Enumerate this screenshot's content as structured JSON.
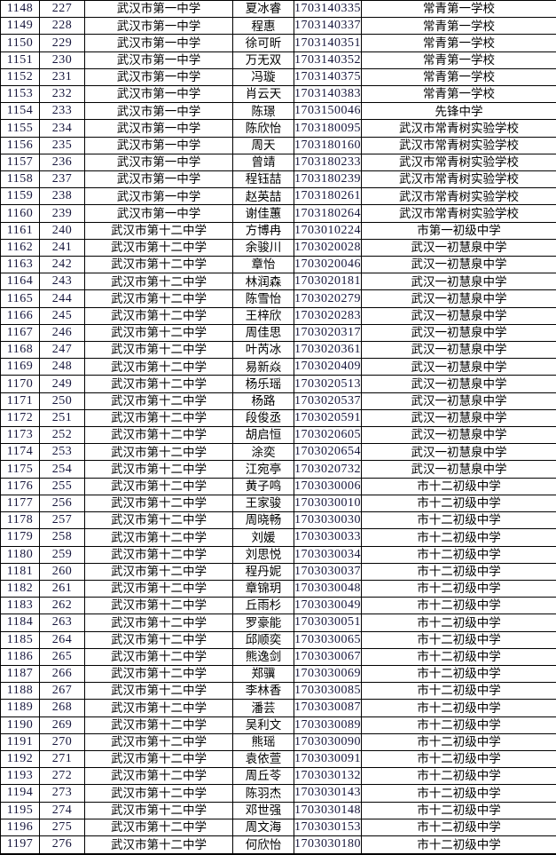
{
  "table": {
    "columns": [
      {
        "name": "cell-serial-number"
      },
      {
        "name": "cell-sequence-number"
      },
      {
        "name": "cell-school-name"
      },
      {
        "name": "cell-student-name"
      },
      {
        "name": "cell-exam-id"
      },
      {
        "name": "cell-destination-school"
      }
    ],
    "rows": [
      [
        "1148",
        "227",
        "武汉市第一中学",
        "夏冰睿",
        "1703140335",
        "常青第一学校"
      ],
      [
        "1149",
        "228",
        "武汉市第一中学",
        "程惠",
        "1703140337",
        "常青第一学校"
      ],
      [
        "1150",
        "229",
        "武汉市第一中学",
        "徐可昕",
        "1703140351",
        "常青第一学校"
      ],
      [
        "1151",
        "230",
        "武汉市第一中学",
        "万无双",
        "1703140352",
        "常青第一学校"
      ],
      [
        "1152",
        "231",
        "武汉市第一中学",
        "冯璇",
        "1703140375",
        "常青第一学校"
      ],
      [
        "1153",
        "232",
        "武汉市第一中学",
        "肖云天",
        "1703140383",
        "常青第一学校"
      ],
      [
        "1154",
        "233",
        "武汉市第一中学",
        "陈璟",
        "1703150046",
        "先锋中学"
      ],
      [
        "1155",
        "234",
        "武汉市第一中学",
        "陈欣怡",
        "1703180095",
        "武汉市常青树实验学校"
      ],
      [
        "1156",
        "235",
        "武汉市第一中学",
        "周天",
        "1703180160",
        "武汉市常青树实验学校"
      ],
      [
        "1157",
        "236",
        "武汉市第一中学",
        "曾靖",
        "1703180233",
        "武汉市常青树实验学校"
      ],
      [
        "1158",
        "237",
        "武汉市第一中学",
        "程钰喆",
        "1703180239",
        "武汉市常青树实验学校"
      ],
      [
        "1159",
        "238",
        "武汉市第一中学",
        "赵英喆",
        "1703180261",
        "武汉市常青树实验学校"
      ],
      [
        "1160",
        "239",
        "武汉市第一中学",
        "谢佳蕙",
        "1703180264",
        "武汉市常青树实验学校"
      ],
      [
        "1161",
        "240",
        "武汉市第十二中学",
        "方博冉",
        "1703010224",
        "市第一初级中学"
      ],
      [
        "1162",
        "241",
        "武汉市第十二中学",
        "余骏川",
        "1703020028",
        "武汉一初慧泉中学"
      ],
      [
        "1163",
        "242",
        "武汉市第十二中学",
        "章怡",
        "1703020046",
        "武汉一初慧泉中学"
      ],
      [
        "1164",
        "243",
        "武汉市第十二中学",
        "林润森",
        "1703020181",
        "武汉一初慧泉中学"
      ],
      [
        "1165",
        "244",
        "武汉市第十二中学",
        "陈雪怡",
        "1703020279",
        "武汉一初慧泉中学"
      ],
      [
        "1166",
        "245",
        "武汉市第十二中学",
        "王梓欣",
        "1703020283",
        "武汉一初慧泉中学"
      ],
      [
        "1167",
        "246",
        "武汉市第十二中学",
        "周佳思",
        "1703020317",
        "武汉一初慧泉中学"
      ],
      [
        "1168",
        "247",
        "武汉市第十二中学",
        "叶芮冰",
        "1703020361",
        "武汉一初慧泉中学"
      ],
      [
        "1169",
        "248",
        "武汉市第十二中学",
        "易新焱",
        "1703020409",
        "武汉一初慧泉中学"
      ],
      [
        "1170",
        "249",
        "武汉市第十二中学",
        "杨乐瑶",
        "1703020513",
        "武汉一初慧泉中学"
      ],
      [
        "1171",
        "250",
        "武汉市第十二中学",
        "杨路",
        "1703020537",
        "武汉一初慧泉中学"
      ],
      [
        "1172",
        "251",
        "武汉市第十二中学",
        "段俊丞",
        "1703020591",
        "武汉一初慧泉中学"
      ],
      [
        "1173",
        "252",
        "武汉市第十二中学",
        "胡启恒",
        "1703020605",
        "武汉一初慧泉中学"
      ],
      [
        "1174",
        "253",
        "武汉市第十二中学",
        "涂奕",
        "1703020654",
        "武汉一初慧泉中学"
      ],
      [
        "1175",
        "254",
        "武汉市第十二中学",
        "江宛亭",
        "1703020732",
        "武汉一初慧泉中学"
      ],
      [
        "1176",
        "255",
        "武汉市第十二中学",
        "黄子鸣",
        "1703030006",
        "市十二初级中学"
      ],
      [
        "1177",
        "256",
        "武汉市第十二中学",
        "王家骏",
        "1703030010",
        "市十二初级中学"
      ],
      [
        "1178",
        "257",
        "武汉市第十二中学",
        "周晓畅",
        "1703030030",
        "市十二初级中学"
      ],
      [
        "1179",
        "258",
        "武汉市第十二中学",
        "刘媛",
        "1703030033",
        "市十二初级中学"
      ],
      [
        "1180",
        "259",
        "武汉市第十二中学",
        "刘思悦",
        "1703030034",
        "市十二初级中学"
      ],
      [
        "1181",
        "260",
        "武汉市第十二中学",
        "程丹妮",
        "1703030037",
        "市十二初级中学"
      ],
      [
        "1182",
        "261",
        "武汉市第十二中学",
        "章锦玥",
        "1703030048",
        "市十二初级中学"
      ],
      [
        "1183",
        "262",
        "武汉市第十二中学",
        "丘雨杉",
        "1703030049",
        "市十二初级中学"
      ],
      [
        "1184",
        "263",
        "武汉市第十二中学",
        "罗豪能",
        "1703030051",
        "市十二初级中学"
      ],
      [
        "1185",
        "264",
        "武汉市第十二中学",
        "邱顺奕",
        "1703030065",
        "市十二初级中学"
      ],
      [
        "1186",
        "265",
        "武汉市第十二中学",
        "熊逸剑",
        "1703030067",
        "市十二初级中学"
      ],
      [
        "1187",
        "266",
        "武汉市第十二中学",
        "郑骥",
        "1703030069",
        "市十二初级中学"
      ],
      [
        "1188",
        "267",
        "武汉市第十二中学",
        "李林香",
        "1703030085",
        "市十二初级中学"
      ],
      [
        "1189",
        "268",
        "武汉市第十二中学",
        "潘芸",
        "1703030087",
        "市十二初级中学"
      ],
      [
        "1190",
        "269",
        "武汉市第十二中学",
        "吴利文",
        "1703030089",
        "市十二初级中学"
      ],
      [
        "1191",
        "270",
        "武汉市第十二中学",
        "熊瑶",
        "1703030090",
        "市十二初级中学"
      ],
      [
        "1192",
        "271",
        "武汉市第十二中学",
        "袁依萱",
        "1703030091",
        "市十二初级中学"
      ],
      [
        "1193",
        "272",
        "武汉市第十二中学",
        "周丘苓",
        "1703030132",
        "市十二初级中学"
      ],
      [
        "1194",
        "273",
        "武汉市第十二中学",
        "陈羽杰",
        "1703030143",
        "市十二初级中学"
      ],
      [
        "1195",
        "274",
        "武汉市第十二中学",
        "邓世强",
        "1703030148",
        "市十二初级中学"
      ],
      [
        "1196",
        "275",
        "武汉市第十二中学",
        "周文海",
        "1703030153",
        "市十二初级中学"
      ],
      [
        "1197",
        "276",
        "武汉市第十二中学",
        "何欣怡",
        "1703030180",
        "市十二初级中学"
      ]
    ]
  },
  "colors": {
    "grid": "#000000",
    "digit_text": "#16163c",
    "cjk_text": "#000000",
    "background": "#ffffff"
  }
}
